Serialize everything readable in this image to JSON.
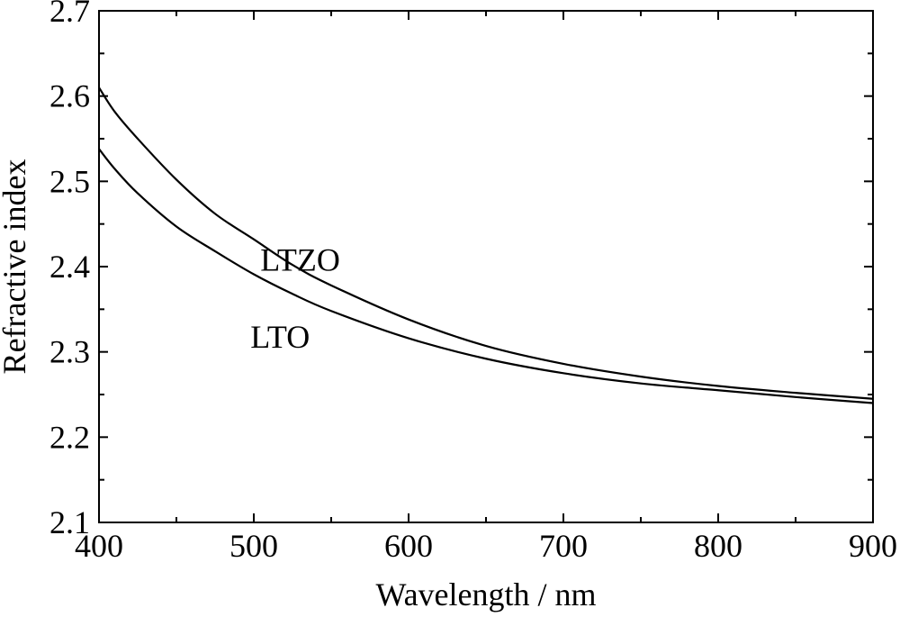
{
  "chart_data": {
    "type": "line",
    "title": "",
    "xlabel": "Wavelength / nm",
    "ylabel": "Refractive index",
    "xlim": [
      400,
      900
    ],
    "ylim": [
      2.1,
      2.7
    ],
    "x_ticks": [
      400,
      500,
      600,
      700,
      800,
      900
    ],
    "x_tick_labels": [
      "400",
      "500",
      "600",
      "700",
      "800",
      "900"
    ],
    "x_minor_step": 50,
    "y_ticks": [
      2.1,
      2.2,
      2.3,
      2.4,
      2.5,
      2.6,
      2.7
    ],
    "y_tick_labels": [
      "2.1",
      "2.2",
      "2.3",
      "2.4",
      "2.5",
      "2.6",
      "2.7"
    ],
    "y_minor_step": 0.05,
    "grid": false,
    "legend": "none",
    "series": [
      {
        "name": "LTZO",
        "color": "#000000",
        "x": [
          400,
          410,
          425,
          450,
          475,
          500,
          525,
          550,
          600,
          650,
          700,
          750,
          800,
          850,
          900
        ],
        "y": [
          2.61,
          2.582,
          2.55,
          2.502,
          2.462,
          2.432,
          2.402,
          2.378,
          2.338,
          2.307,
          2.286,
          2.271,
          2.26,
          2.252,
          2.245
        ]
      },
      {
        "name": "LTO",
        "color": "#000000",
        "x": [
          400,
          410,
          425,
          450,
          475,
          500,
          525,
          550,
          600,
          650,
          700,
          750,
          800,
          850,
          900
        ],
        "y": [
          2.538,
          2.515,
          2.486,
          2.447,
          2.418,
          2.391,
          2.368,
          2.348,
          2.316,
          2.292,
          2.275,
          2.263,
          2.255,
          2.247,
          2.24
        ]
      }
    ],
    "annotations": [
      {
        "text": "LTZO",
        "x": 530,
        "y": 2.395
      },
      {
        "text": "LTO",
        "x": 517,
        "y": 2.305
      }
    ]
  }
}
